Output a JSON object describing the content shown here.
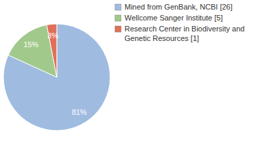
{
  "chart_data": {
    "type": "pie",
    "categories": [
      "Mined from GenBank, NCBI [26]",
      "Wellcome Sanger Institute [5]",
      "Research Center in Biodiversity and Genetic Resources [1]"
    ],
    "values": [
      81,
      15,
      3
    ],
    "value_labels": [
      "81%",
      "15%",
      "3%"
    ],
    "colors": [
      "#9fbbe0",
      "#a1c98b",
      "#e0705a"
    ],
    "data_labels": true,
    "legend": "top-right"
  }
}
